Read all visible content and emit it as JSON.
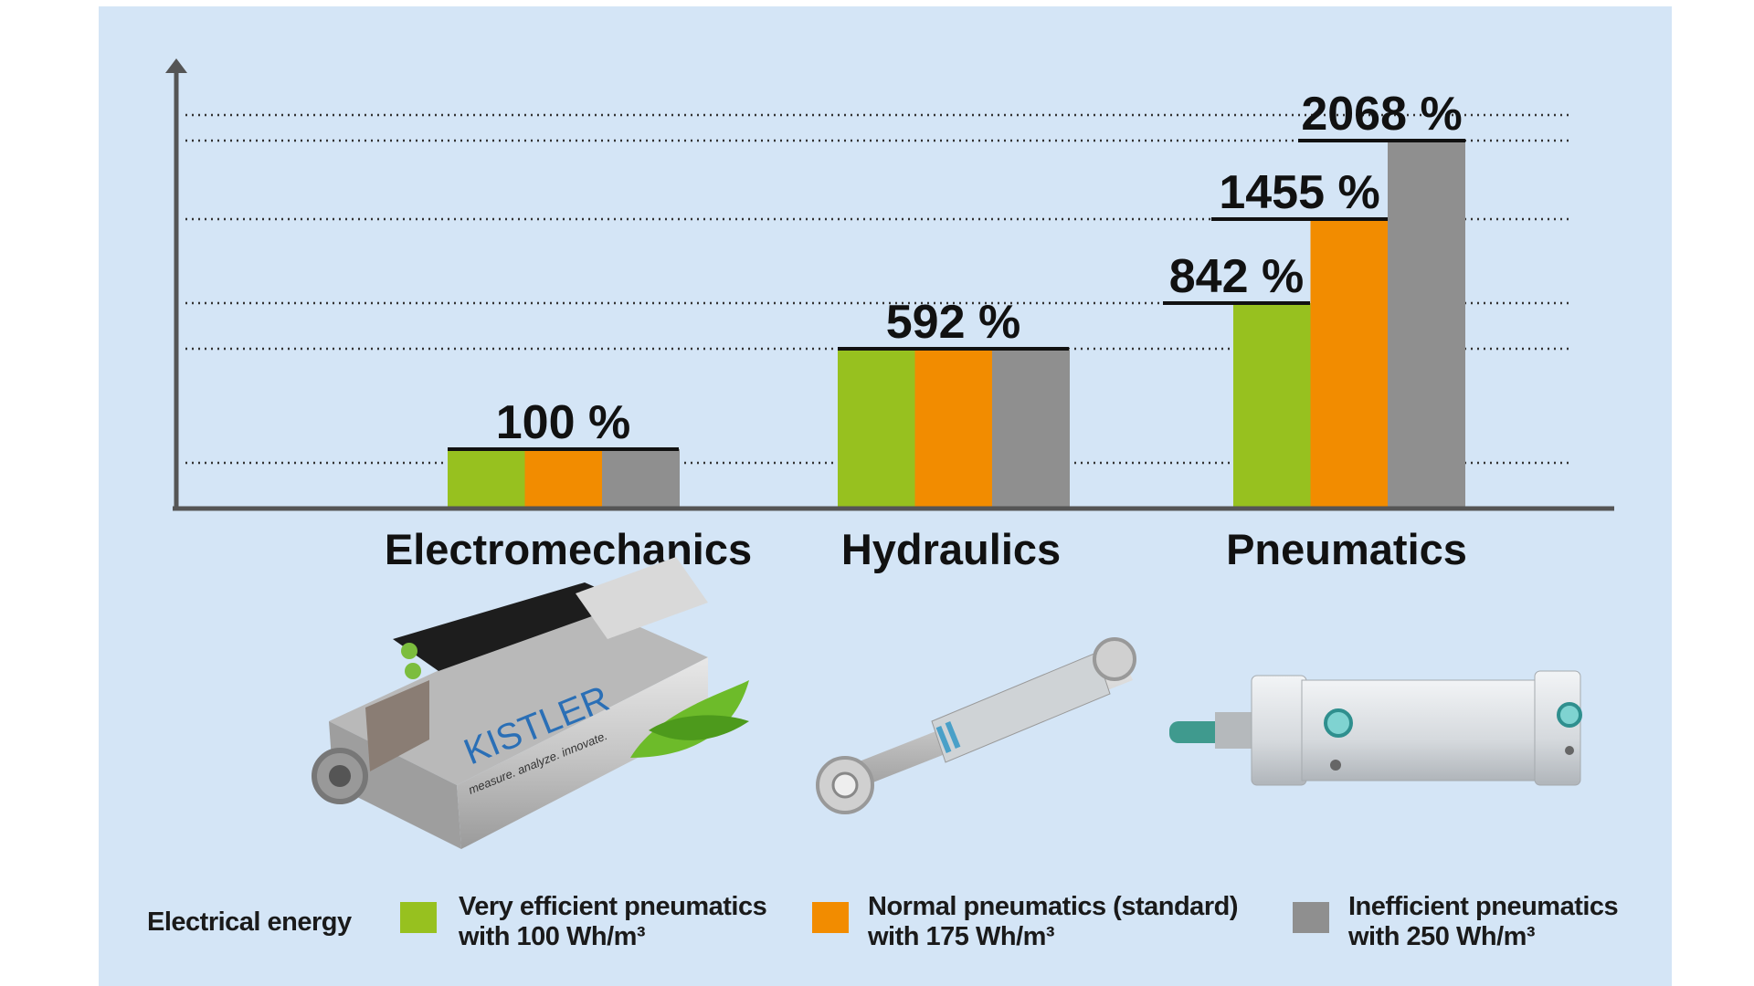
{
  "chart_data": {
    "type": "bar",
    "title": "",
    "xlabel": "",
    "ylabel": "",
    "categories": [
      "Electromechanics",
      "Hydraulics",
      "Pneumatics"
    ],
    "series": [
      {
        "name": "Very efficient pneumatics with 100 Wh/m³",
        "color": "#97c11f",
        "values": [
          100,
          592,
          842
        ]
      },
      {
        "name": "Normal pneumatics (standard) with 175 Wh/m³",
        "color": "#f28c00",
        "values": [
          100,
          592,
          1455
        ]
      },
      {
        "name": "Inefficient pneumatics with 250 Wh/m³",
        "color": "#8f8f8f",
        "values": [
          100,
          592,
          2068
        ]
      }
    ],
    "data_labels": [
      "100 %",
      "592 %",
      "842 %",
      "1455 %",
      "2068 %"
    ],
    "grid": "dotted horizontal",
    "legend_position": "bottom"
  },
  "legend": {
    "title": "Electrical energy",
    "items": [
      {
        "line1": "Very efficient pneumatics",
        "line2": "with 100 Wh/m³",
        "color": "#97c11f"
      },
      {
        "line1": "Normal pneumatics (standard)",
        "line2": "with 175 Wh/m³",
        "color": "#f28c00"
      },
      {
        "line1": "Inefficient pneumatics",
        "line2": "with 250 Wh/m³",
        "color": "#8f8f8f"
      }
    ]
  },
  "images": {
    "electromechanics": "Kistler electromechanical actuator",
    "electromechanics_logo": "KISTLER",
    "electromechanics_slogan": "measure. analyze. innovate.",
    "hydraulics": "hydraulic cylinder",
    "pneumatics": "pneumatic cylinder"
  },
  "colors": {
    "background": "#d4e5f6",
    "axis": "#555555"
  }
}
